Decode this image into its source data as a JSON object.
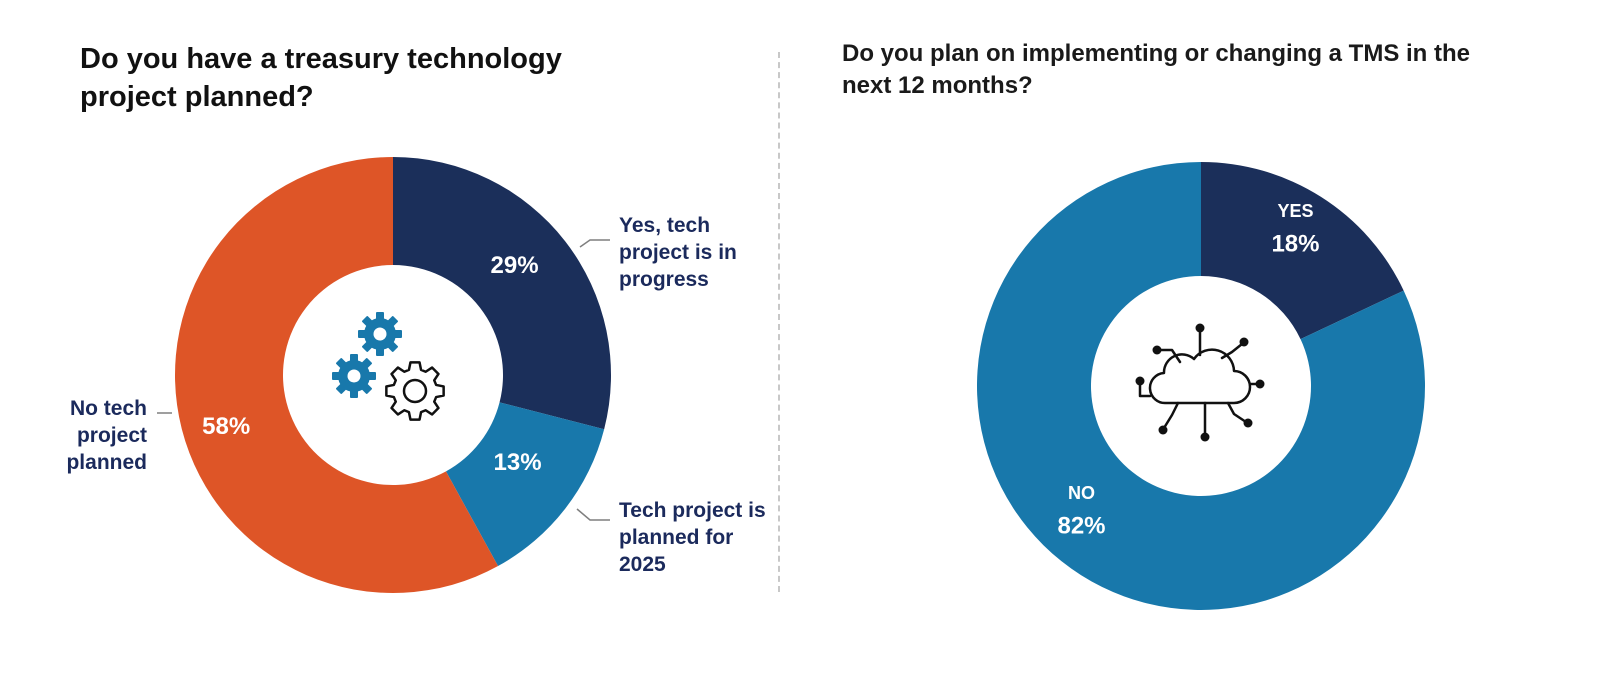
{
  "chart_data": [
    {
      "type": "donut",
      "title": "Do you have a treasury technology project planned?",
      "slices": [
        {
          "label": "Yes, tech project is in progress",
          "value": 29,
          "display": "29%",
          "color": "#1b2f5a"
        },
        {
          "label": "Tech project is planned for 2025",
          "value": 13,
          "display": "13%",
          "color": "#1878ab"
        },
        {
          "label": "No tech project planned",
          "value": 58,
          "display": "58%",
          "color": "#de5527"
        }
      ],
      "center_icon": "gears-icon"
    },
    {
      "type": "donut",
      "title": "Do you plan on implementing or changing a TMS in the next 12 months?",
      "slices": [
        {
          "label": "YES",
          "value": 18,
          "display": "18%",
          "color": "#1b2f5a"
        },
        {
          "label": "NO",
          "value": 82,
          "display": "82%",
          "color": "#1878ab"
        }
      ],
      "center_icon": "cloud-network-icon"
    }
  ]
}
